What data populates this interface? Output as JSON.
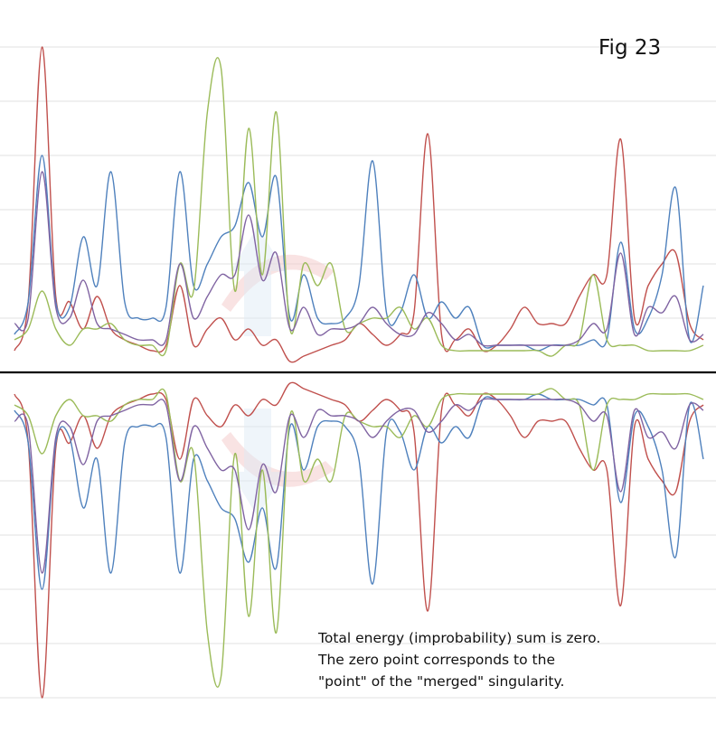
{
  "figure_label": "Fig 23",
  "caption": {
    "lines": [
      "Total energy (improbability) sum is zero.",
      "The zero point corresponds to the",
      "\"point\" of the \"merged\" singularity."
    ]
  },
  "chart_data": {
    "type": "line",
    "title": "",
    "xlabel": "",
    "ylabel": "",
    "grid": true,
    "mirrored_about_zero": true,
    "x": [
      0,
      2,
      4,
      6,
      8,
      10,
      12,
      14,
      16,
      18,
      20,
      22,
      24,
      26,
      28,
      30,
      32,
      34,
      36,
      38,
      40,
      42,
      44,
      46,
      48,
      50,
      52,
      54,
      56,
      58,
      60,
      62,
      64,
      66,
      68,
      70,
      72,
      74,
      76,
      78,
      80,
      82,
      84,
      86,
      88,
      90,
      92,
      94,
      96,
      98,
      100
    ],
    "ylim": [
      -8.0,
      8.0
    ],
    "colors": {
      "red": "#c0504d",
      "blue": "#4f81bd",
      "green": "#9bbb59",
      "purple": "#8064a2",
      "zero_line": "#000000",
      "arrow": "#f4cccc",
      "arrow_alt": "#dbe8f4"
    },
    "series": [
      {
        "color": "#c0504d",
        "values": [
          0.4,
          1.3,
          6.0,
          1.4,
          1.3,
          0.8,
          1.4,
          0.8,
          0.6,
          0.5,
          0.4,
          0.5,
          1.6,
          0.5,
          0.8,
          1.0,
          0.6,
          0.8,
          0.5,
          0.6,
          0.2,
          0.3,
          0.4,
          0.5,
          0.6,
          0.9,
          0.7,
          0.5,
          0.7,
          1.1,
          4.4,
          0.7,
          0.6,
          0.8,
          0.4,
          0.5,
          0.8,
          1.2,
          0.9,
          0.9,
          0.9,
          1.4,
          1.8,
          1.8,
          4.3,
          1.0,
          1.6,
          2.0,
          2.2,
          0.9,
          0.6
        ]
      },
      {
        "color": "#4f81bd",
        "values": [
          0.7,
          1.3,
          4.0,
          1.3,
          1.2,
          2.5,
          1.6,
          3.7,
          1.3,
          1.0,
          1.0,
          1.2,
          3.7,
          1.6,
          2.0,
          2.5,
          2.7,
          3.5,
          2.5,
          3.6,
          1.0,
          1.8,
          1.0,
          0.9,
          1.0,
          1.6,
          3.9,
          1.1,
          1.1,
          1.8,
          1.0,
          1.3,
          1.0,
          1.2,
          0.5,
          0.5,
          0.5,
          0.5,
          0.4,
          0.5,
          0.5,
          0.5,
          0.6,
          0.6,
          2.4,
          0.8,
          1.0,
          1.8,
          3.4,
          0.6,
          1.6
        ]
      },
      {
        "color": "#9bbb59",
        "values": [
          0.6,
          0.8,
          1.5,
          0.8,
          0.5,
          0.8,
          0.8,
          0.9,
          0.6,
          0.5,
          0.5,
          0.4,
          2.0,
          1.5,
          4.8,
          5.6,
          1.5,
          4.5,
          1.8,
          4.8,
          0.8,
          2.0,
          1.6,
          2.0,
          0.8,
          0.9,
          1.0,
          1.0,
          1.2,
          0.8,
          1.0,
          0.5,
          0.4,
          0.4,
          0.4,
          0.4,
          0.4,
          0.4,
          0.4,
          0.3,
          0.5,
          0.6,
          1.8,
          0.6,
          0.5,
          0.5,
          0.4,
          0.4,
          0.4,
          0.4,
          0.5
        ]
      },
      {
        "color": "#8064a2",
        "values": [
          0.9,
          1.0,
          3.7,
          1.2,
          1.0,
          1.7,
          0.9,
          0.8,
          0.7,
          0.6,
          0.6,
          0.6,
          2.0,
          1.0,
          1.4,
          1.8,
          1.8,
          2.9,
          1.7,
          2.2,
          0.8,
          1.2,
          0.7,
          0.8,
          0.8,
          0.9,
          1.2,
          0.9,
          0.7,
          0.7,
          1.1,
          0.9,
          0.6,
          0.7,
          0.5,
          0.5,
          0.5,
          0.5,
          0.5,
          0.5,
          0.5,
          0.6,
          0.9,
          0.8,
          2.2,
          0.7,
          1.2,
          1.1,
          1.4,
          0.6,
          0.7
        ]
      }
    ]
  }
}
